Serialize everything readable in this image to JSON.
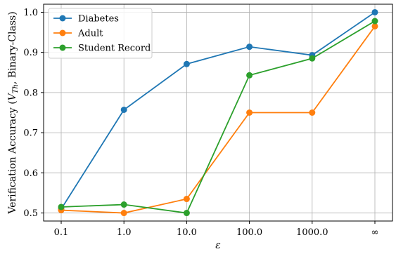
{
  "chart_data": {
    "type": "line",
    "categories": [
      "0.1",
      "1.0",
      "10.0",
      "100.0",
      "1000.0",
      "∞"
    ],
    "xlabel": "ε",
    "ylabel": {
      "prefix": "Verification Accuracy (",
      "v": "V",
      "sub": "Th",
      "suffix": ", Binary-Class)"
    },
    "ylim": [
      0.48,
      1.02
    ],
    "yticks": [
      "0.5",
      "0.6",
      "0.7",
      "0.8",
      "0.9",
      "1.0"
    ],
    "grid": true,
    "legend_position": "top-left",
    "series": [
      {
        "name": "Diabetes",
        "color": "#1f77b4",
        "values": [
          0.51,
          0.757,
          0.871,
          0.914,
          0.893,
          1.0
        ]
      },
      {
        "name": "Adult",
        "color": "#ff7f0e",
        "values": [
          0.507,
          0.5,
          0.535,
          0.75,
          0.75,
          0.965
        ]
      },
      {
        "name": "Student Record",
        "color": "#2ca02c",
        "values": [
          0.515,
          0.521,
          0.5,
          0.843,
          0.885,
          0.978
        ]
      }
    ]
  }
}
